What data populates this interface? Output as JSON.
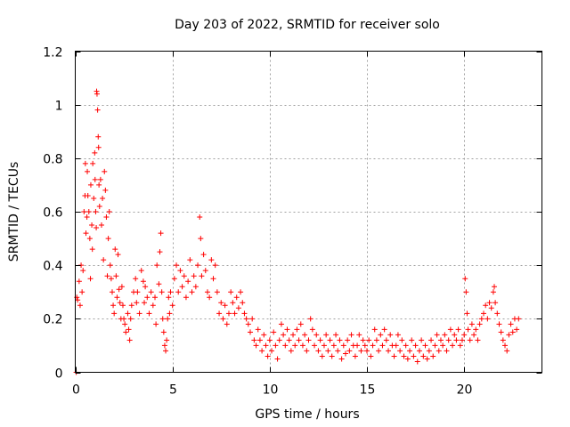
{
  "chart_data": {
    "type": "scatter",
    "title": "Day 203 of 2022, SRMTID for receiver solo",
    "xlabel": "GPS time / hours",
    "ylabel": "SRMTID / TECUs",
    "xlim": [
      0,
      24
    ],
    "ylim": [
      0,
      1.2
    ],
    "xticks": [
      0,
      5,
      10,
      15,
      20
    ],
    "xtick_labels": [
      "0",
      "5",
      "10",
      "15",
      "20"
    ],
    "yticks": [
      0,
      0.2,
      0.4,
      0.6,
      0.8,
      1,
      1.2
    ],
    "ytick_labels": [
      "0",
      "0.2",
      "0.4",
      "0.6",
      "0.8",
      "1",
      "1.2"
    ],
    "grid": true,
    "marker": "+",
    "color": "#ff0000",
    "series": [
      {
        "name": "SRMTID",
        "points": [
          [
            0.05,
            0.0
          ],
          [
            0.08,
            0.28
          ],
          [
            0.12,
            0.27
          ],
          [
            0.2,
            0.34
          ],
          [
            0.25,
            0.25
          ],
          [
            0.3,
            0.4
          ],
          [
            0.35,
            0.3
          ],
          [
            0.4,
            0.38
          ],
          [
            0.45,
            0.6
          ],
          [
            0.5,
            0.66
          ],
          [
            0.52,
            0.78
          ],
          [
            0.55,
            0.52
          ],
          [
            0.6,
            0.58
          ],
          [
            0.62,
            0.75
          ],
          [
            0.65,
            0.66
          ],
          [
            0.7,
            0.6
          ],
          [
            0.75,
            0.5
          ],
          [
            0.78,
            0.35
          ],
          [
            0.8,
            0.7
          ],
          [
            0.85,
            0.55
          ],
          [
            0.88,
            0.46
          ],
          [
            0.9,
            0.78
          ],
          [
            0.95,
            0.65
          ],
          [
            1.0,
            0.82
          ],
          [
            1.02,
            0.72
          ],
          [
            1.05,
            0.6
          ],
          [
            1.08,
            0.54
          ],
          [
            1.1,
            1.05
          ],
          [
            1.12,
            1.04
          ],
          [
            1.15,
            0.98
          ],
          [
            1.18,
            0.88
          ],
          [
            1.2,
            0.84
          ],
          [
            1.22,
            0.7
          ],
          [
            1.25,
            0.62
          ],
          [
            1.3,
            0.72
          ],
          [
            1.35,
            0.55
          ],
          [
            1.4,
            0.65
          ],
          [
            1.45,
            0.42
          ],
          [
            1.5,
            0.75
          ],
          [
            1.55,
            0.68
          ],
          [
            1.6,
            0.58
          ],
          [
            1.65,
            0.36
          ],
          [
            1.7,
            0.5
          ],
          [
            1.75,
            0.6
          ],
          [
            1.8,
            0.4
          ],
          [
            1.85,
            0.35
          ],
          [
            1.9,
            0.3
          ],
          [
            1.95,
            0.25
          ],
          [
            2.0,
            0.22
          ],
          [
            2.05,
            0.46
          ],
          [
            2.1,
            0.36
          ],
          [
            2.15,
            0.28
          ],
          [
            2.2,
            0.44
          ],
          [
            2.25,
            0.31
          ],
          [
            2.3,
            0.26
          ],
          [
            2.35,
            0.2
          ],
          [
            2.4,
            0.32
          ],
          [
            2.45,
            0.25
          ],
          [
            2.5,
            0.2
          ],
          [
            2.55,
            0.18
          ],
          [
            2.6,
            0.15
          ],
          [
            2.7,
            0.22
          ],
          [
            2.75,
            0.16
          ],
          [
            2.8,
            0.12
          ],
          [
            2.85,
            0.2
          ],
          [
            2.9,
            0.25
          ],
          [
            3.0,
            0.3
          ],
          [
            3.1,
            0.35
          ],
          [
            3.15,
            0.26
          ],
          [
            3.2,
            0.3
          ],
          [
            3.3,
            0.22
          ],
          [
            3.4,
            0.38
          ],
          [
            3.5,
            0.34
          ],
          [
            3.55,
            0.26
          ],
          [
            3.6,
            0.32
          ],
          [
            3.7,
            0.28
          ],
          [
            3.8,
            0.22
          ],
          [
            3.9,
            0.3
          ],
          [
            4.0,
            0.25
          ],
          [
            4.1,
            0.28
          ],
          [
            4.15,
            0.18
          ],
          [
            4.2,
            0.4
          ],
          [
            4.3,
            0.33
          ],
          [
            4.35,
            0.45
          ],
          [
            4.4,
            0.52
          ],
          [
            4.45,
            0.3
          ],
          [
            4.5,
            0.2
          ],
          [
            4.55,
            0.15
          ],
          [
            4.6,
            0.1
          ],
          [
            4.65,
            0.08
          ],
          [
            4.7,
            0.12
          ],
          [
            4.75,
            0.2
          ],
          [
            4.8,
            0.28
          ],
          [
            4.85,
            0.22
          ],
          [
            4.9,
            0.3
          ],
          [
            5.0,
            0.25
          ],
          [
            5.1,
            0.35
          ],
          [
            5.2,
            0.4
          ],
          [
            5.3,
            0.3
          ],
          [
            5.4,
            0.38
          ],
          [
            5.5,
            0.32
          ],
          [
            5.6,
            0.36
          ],
          [
            5.7,
            0.28
          ],
          [
            5.8,
            0.34
          ],
          [
            5.9,
            0.42
          ],
          [
            6.0,
            0.3
          ],
          [
            6.1,
            0.36
          ],
          [
            6.2,
            0.32
          ],
          [
            6.3,
            0.4
          ],
          [
            6.4,
            0.58
          ],
          [
            6.45,
            0.5
          ],
          [
            6.5,
            0.36
          ],
          [
            6.6,
            0.44
          ],
          [
            6.7,
            0.38
          ],
          [
            6.8,
            0.3
          ],
          [
            6.9,
            0.28
          ],
          [
            7.0,
            0.42
          ],
          [
            7.1,
            0.35
          ],
          [
            7.2,
            0.4
          ],
          [
            7.3,
            0.3
          ],
          [
            7.4,
            0.22
          ],
          [
            7.5,
            0.26
          ],
          [
            7.6,
            0.2
          ],
          [
            7.7,
            0.25
          ],
          [
            7.8,
            0.18
          ],
          [
            7.9,
            0.22
          ],
          [
            8.0,
            0.3
          ],
          [
            8.1,
            0.26
          ],
          [
            8.2,
            0.22
          ],
          [
            8.3,
            0.28
          ],
          [
            8.4,
            0.24
          ],
          [
            8.5,
            0.3
          ],
          [
            8.6,
            0.26
          ],
          [
            8.7,
            0.22
          ],
          [
            8.8,
            0.2
          ],
          [
            8.9,
            0.18
          ],
          [
            9.0,
            0.15
          ],
          [
            9.1,
            0.2
          ],
          [
            9.2,
            0.12
          ],
          [
            9.3,
            0.1
          ],
          [
            9.4,
            0.16
          ],
          [
            9.5,
            0.12
          ],
          [
            9.6,
            0.08
          ],
          [
            9.7,
            0.14
          ],
          [
            9.8,
            0.1
          ],
          [
            9.9,
            0.06
          ],
          [
            10.0,
            0.12
          ],
          [
            10.1,
            0.08
          ],
          [
            10.2,
            0.15
          ],
          [
            10.3,
            0.1
          ],
          [
            10.4,
            0.05
          ],
          [
            10.5,
            0.12
          ],
          [
            10.6,
            0.18
          ],
          [
            10.7,
            0.14
          ],
          [
            10.8,
            0.1
          ],
          [
            10.9,
            0.16
          ],
          [
            11.0,
            0.12
          ],
          [
            11.1,
            0.08
          ],
          [
            11.2,
            0.14
          ],
          [
            11.3,
            0.1
          ],
          [
            11.4,
            0.16
          ],
          [
            11.5,
            0.12
          ],
          [
            11.6,
            0.18
          ],
          [
            11.7,
            0.1
          ],
          [
            11.8,
            0.14
          ],
          [
            11.9,
            0.08
          ],
          [
            12.0,
            0.12
          ],
          [
            12.1,
            0.2
          ],
          [
            12.2,
            0.16
          ],
          [
            12.3,
            0.1
          ],
          [
            12.4,
            0.14
          ],
          [
            12.5,
            0.08
          ],
          [
            12.6,
            0.12
          ],
          [
            12.7,
            0.06
          ],
          [
            12.8,
            0.1
          ],
          [
            12.9,
            0.14
          ],
          [
            13.0,
            0.08
          ],
          [
            13.1,
            0.12
          ],
          [
            13.2,
            0.06
          ],
          [
            13.3,
            0.1
          ],
          [
            13.4,
            0.14
          ],
          [
            13.5,
            0.08
          ],
          [
            13.6,
            0.12
          ],
          [
            13.7,
            0.05
          ],
          [
            13.8,
            0.1
          ],
          [
            13.9,
            0.07
          ],
          [
            14.0,
            0.12
          ],
          [
            14.1,
            0.08
          ],
          [
            14.2,
            0.14
          ],
          [
            14.3,
            0.1
          ],
          [
            14.4,
            0.06
          ],
          [
            14.5,
            0.1
          ],
          [
            14.6,
            0.14
          ],
          [
            14.7,
            0.08
          ],
          [
            14.8,
            0.12
          ],
          [
            14.9,
            0.1
          ],
          [
            15.0,
            0.08
          ],
          [
            15.1,
            0.12
          ],
          [
            15.2,
            0.06
          ],
          [
            15.3,
            0.1
          ],
          [
            15.4,
            0.16
          ],
          [
            15.5,
            0.12
          ],
          [
            15.6,
            0.08
          ],
          [
            15.7,
            0.14
          ],
          [
            15.8,
            0.1
          ],
          [
            15.9,
            0.16
          ],
          [
            16.0,
            0.12
          ],
          [
            16.1,
            0.08
          ],
          [
            16.2,
            0.14
          ],
          [
            16.3,
            0.1
          ],
          [
            16.4,
            0.06
          ],
          [
            16.5,
            0.1
          ],
          [
            16.6,
            0.14
          ],
          [
            16.7,
            0.08
          ],
          [
            16.8,
            0.12
          ],
          [
            16.9,
            0.06
          ],
          [
            17.0,
            0.1
          ],
          [
            17.1,
            0.05
          ],
          [
            17.2,
            0.08
          ],
          [
            17.3,
            0.12
          ],
          [
            17.4,
            0.06
          ],
          [
            17.5,
            0.1
          ],
          [
            17.6,
            0.04
          ],
          [
            17.7,
            0.08
          ],
          [
            17.8,
            0.12
          ],
          [
            17.9,
            0.06
          ],
          [
            18.0,
            0.1
          ],
          [
            18.1,
            0.05
          ],
          [
            18.2,
            0.08
          ],
          [
            18.3,
            0.12
          ],
          [
            18.4,
            0.06
          ],
          [
            18.5,
            0.1
          ],
          [
            18.6,
            0.14
          ],
          [
            18.7,
            0.08
          ],
          [
            18.8,
            0.12
          ],
          [
            18.9,
            0.1
          ],
          [
            19.0,
            0.14
          ],
          [
            19.1,
            0.08
          ],
          [
            19.2,
            0.12
          ],
          [
            19.3,
            0.16
          ],
          [
            19.4,
            0.1
          ],
          [
            19.5,
            0.14
          ],
          [
            19.6,
            0.12
          ],
          [
            19.7,
            0.16
          ],
          [
            19.8,
            0.1
          ],
          [
            19.9,
            0.12
          ],
          [
            20.0,
            0.14
          ],
          [
            20.05,
            0.35
          ],
          [
            20.1,
            0.3
          ],
          [
            20.15,
            0.22
          ],
          [
            20.2,
            0.16
          ],
          [
            20.3,
            0.12
          ],
          [
            20.4,
            0.18
          ],
          [
            20.5,
            0.14
          ],
          [
            20.6,
            0.16
          ],
          [
            20.7,
            0.12
          ],
          [
            20.8,
            0.18
          ],
          [
            20.9,
            0.2
          ],
          [
            21.0,
            0.22
          ],
          [
            21.1,
            0.25
          ],
          [
            21.2,
            0.2
          ],
          [
            21.3,
            0.26
          ],
          [
            21.4,
            0.24
          ],
          [
            21.5,
            0.3
          ],
          [
            21.55,
            0.32
          ],
          [
            21.6,
            0.26
          ],
          [
            21.7,
            0.22
          ],
          [
            21.8,
            0.18
          ],
          [
            21.9,
            0.15
          ],
          [
            22.0,
            0.12
          ],
          [
            22.1,
            0.1
          ],
          [
            22.2,
            0.08
          ],
          [
            22.3,
            0.14
          ],
          [
            22.4,
            0.18
          ],
          [
            22.5,
            0.15
          ],
          [
            22.6,
            0.2
          ],
          [
            22.7,
            0.16
          ],
          [
            22.8,
            0.2
          ]
        ]
      }
    ]
  }
}
